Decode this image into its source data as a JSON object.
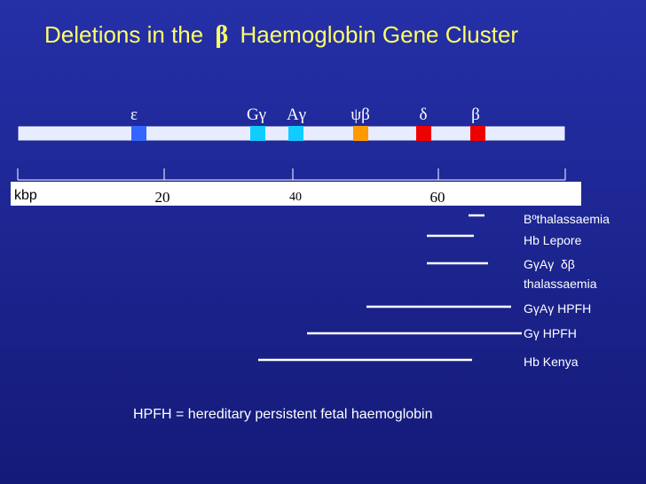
{
  "header": {
    "title_parts": [
      "Deletions in the",
      "β",
      "Haemoglobin Gene Cluster"
    ]
  },
  "genes": [
    {
      "label": "ε"
    },
    {
      "label": "Gγ"
    },
    {
      "label": "Aγ"
    },
    {
      "label": "ψβ"
    },
    {
      "label": "δ"
    },
    {
      "label": "β"
    }
  ],
  "scale": {
    "unit": "kbp",
    "labels": [
      "20",
      "40",
      "60"
    ]
  },
  "deletions": [
    {
      "label": "Bºthalassaemia"
    },
    {
      "label": "Hb Lepore"
    },
    {
      "label": "GγAγ  δβ",
      "label_line2": "thalassaemia"
    },
    {
      "label": "GγAγ HPFH"
    },
    {
      "label": "Gγ HPFH"
    },
    {
      "label": "Hb Kenya"
    }
  ],
  "footnote": "HPFH = hereditary persistent fetal haemoglobin"
}
